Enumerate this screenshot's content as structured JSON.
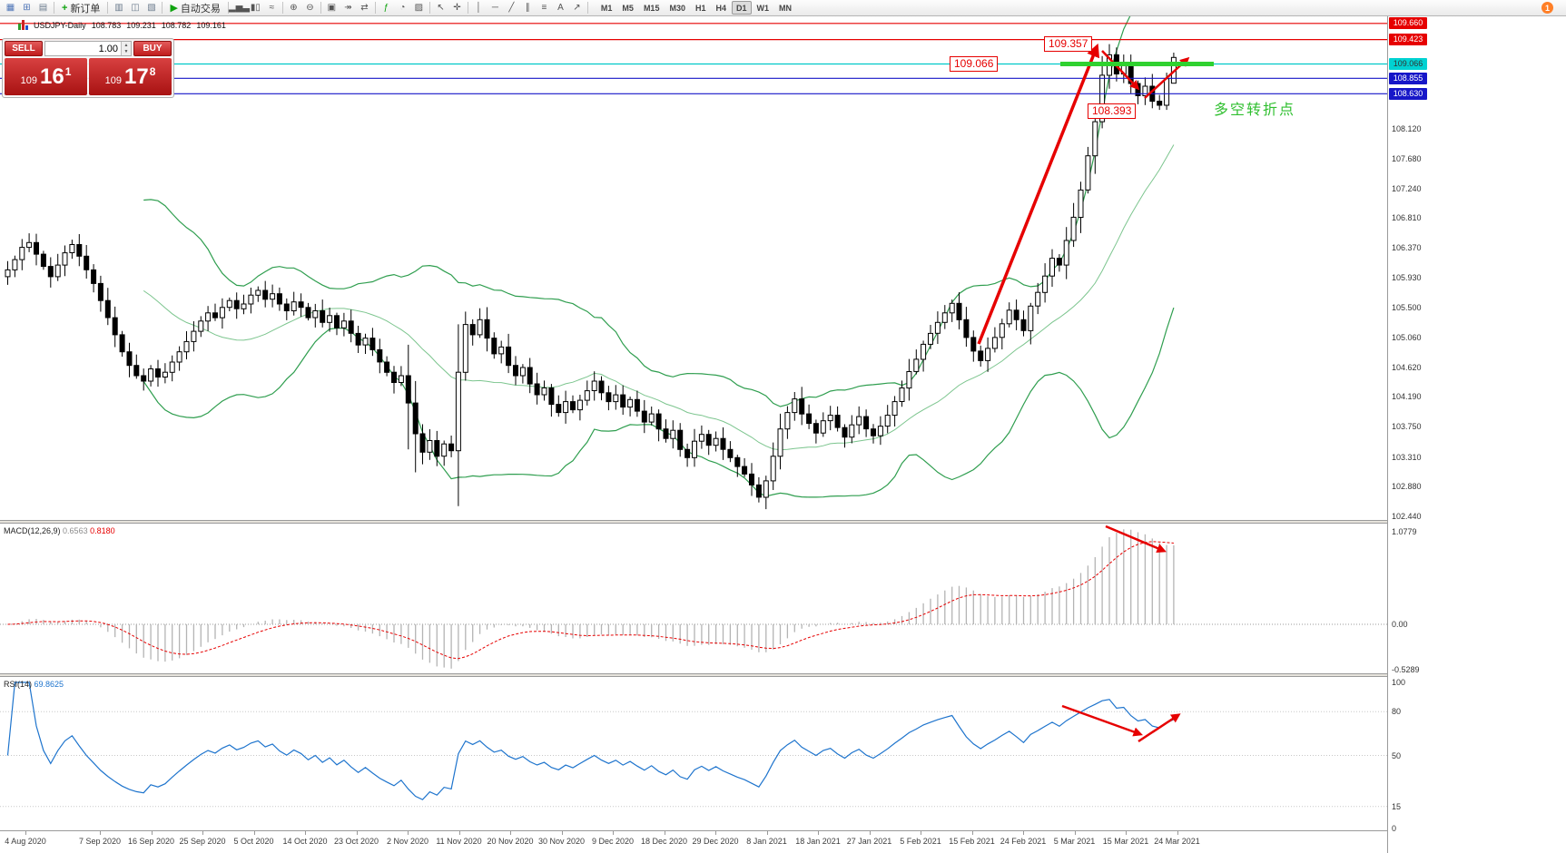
{
  "toolbar": {
    "items": [
      {
        "name": "chart-window-icon",
        "glyph": "▦",
        "color": "#4f76b8"
      },
      {
        "name": "new-chart-icon",
        "glyph": "⊞",
        "color": "#4f76b8"
      },
      {
        "name": "profiles-icon",
        "glyph": "▤",
        "color": "#6b7b8d"
      },
      {
        "sep": true
      },
      {
        "name": "new-order-button",
        "glyph": "+",
        "color": "#0fa30f",
        "label": "新订单"
      },
      {
        "sep": true
      },
      {
        "name": "market-watch-icon",
        "glyph": "▥",
        "color": "#6b7b8d"
      },
      {
        "name": "data-window-icon",
        "glyph": "◫",
        "color": "#6b7b8d"
      },
      {
        "name": "navigator-icon",
        "glyph": "▧",
        "color": "#6b7b8d"
      },
      {
        "sep": true
      },
      {
        "name": "autotrading-button",
        "glyph": "▶",
        "color": "#0fa30f",
        "label": "自动交易"
      },
      {
        "sep": true
      },
      {
        "name": "bar-chart-icon",
        "glyph": "▂▅▃",
        "color": "#555555"
      },
      {
        "name": "candle-chart-icon",
        "glyph": "▮▯",
        "color": "#555555"
      },
      {
        "name": "line-chart-icon",
        "glyph": "≈",
        "color": "#555555"
      },
      {
        "sep": true
      },
      {
        "name": "zoom-in-icon",
        "glyph": "⊕",
        "color": "#555555"
      },
      {
        "name": "zoom-out-icon",
        "glyph": "⊖",
        "color": "#555555"
      },
      {
        "sep": true
      },
      {
        "name": "tile-windows-icon",
        "glyph": "▣",
        "color": "#555555"
      },
      {
        "name": "auto-scroll-icon",
        "glyph": "↠",
        "color": "#555555"
      },
      {
        "name": "chart-shift-icon",
        "glyph": "⇄",
        "color": "#555555"
      },
      {
        "sep": true
      },
      {
        "name": "indicators-icon",
        "glyph": "ƒ",
        "color": "#0fa30f"
      },
      {
        "name": "periods-icon",
        "glyph": "◔",
        "color": "#555555"
      },
      {
        "name": "templates-icon",
        "glyph": "▨",
        "color": "#555555"
      },
      {
        "sep": true
      },
      {
        "name": "cursor-icon",
        "glyph": "↖",
        "color": "#555555"
      },
      {
        "name": "crosshair-icon",
        "glyph": "✛",
        "color": "#555555"
      },
      {
        "sep": true
      },
      {
        "name": "vline-icon",
        "glyph": "│",
        "color": "#555555"
      },
      {
        "name": "hline-icon",
        "glyph": "─",
        "color": "#555555"
      },
      {
        "name": "trendline-icon",
        "glyph": "╱",
        "color": "#555555"
      },
      {
        "name": "channel-icon",
        "glyph": "∥",
        "color": "#555555"
      },
      {
        "name": "fibonacci-icon",
        "glyph": "≡",
        "color": "#555555"
      },
      {
        "name": "text-icon",
        "glyph": "A",
        "color": "#555555"
      },
      {
        "name": "arrows-icon",
        "glyph": "↗",
        "color": "#555555"
      },
      {
        "sep": true
      }
    ],
    "timeframes": [
      "M1",
      "M5",
      "M15",
      "M30",
      "H1",
      "H4",
      "D1",
      "W1",
      "MN"
    ],
    "active_timeframe": "D1",
    "notification_badge": "1"
  },
  "chart_header": {
    "symbol_period": "USDJPY-Daily",
    "open": "108.783",
    "high": "109.231",
    "low": "108.782",
    "close": "109.161"
  },
  "trade_panel": {
    "sell_label": "SELL",
    "buy_label": "BUY",
    "volume": "1.00",
    "sell_price_prefix": "109",
    "sell_price_big": "16",
    "sell_price_sup": "1",
    "buy_price_prefix": "109",
    "buy_price_big": "17",
    "buy_price_sup": "8"
  },
  "annotations": {
    "peak_label": "109.357",
    "level_label": "109.066",
    "low_label": "108.393",
    "turning_point_text": "多空转折点",
    "colors": {
      "annotation_red": "#e60000",
      "trendline_green": "#2fd12f",
      "level_cyan": "#00c8c8",
      "level_blue": "#1616c8"
    }
  },
  "macd_panel": {
    "title": "MACD(12,26,9)",
    "value_main": "0.6563",
    "value_signal": "0.8180",
    "scale": [
      "1.0779",
      "0.00",
      "-0.5289"
    ]
  },
  "rsi_panel": {
    "title": "RSI(14)",
    "value": "69.8625",
    "scale": [
      100,
      80,
      50,
      15,
      0
    ],
    "levels": [
      80,
      50,
      15
    ]
  },
  "price_scale": {
    "boxed": [
      {
        "value": "109.660",
        "type": "red"
      },
      {
        "value": "109.423",
        "type": "red"
      },
      {
        "value": "109.066",
        "type": "cyan"
      },
      {
        "value": "108.855",
        "type": "blue"
      },
      {
        "value": "108.630",
        "type": "blue"
      }
    ],
    "plain": [
      "108.120",
      "107.680",
      "107.240",
      "106.810",
      "106.370",
      "105.930",
      "105.500",
      "105.060",
      "104.620",
      "104.190",
      "103.750",
      "103.310",
      "102.880",
      "102.440"
    ]
  },
  "chart_data": {
    "type": "candlestick",
    "symbol": "USDJPY",
    "period": "Daily",
    "ylim": [
      102.2,
      109.79
    ],
    "grid_step": 0.44,
    "closes": [
      106.05,
      106.2,
      106.38,
      106.45,
      106.28,
      106.1,
      105.95,
      106.12,
      106.3,
      106.42,
      106.25,
      106.05,
      105.85,
      105.6,
      105.35,
      105.1,
      104.85,
      104.65,
      104.5,
      104.42,
      104.6,
      104.48,
      104.55,
      104.7,
      104.85,
      105.0,
      105.15,
      105.3,
      105.42,
      105.35,
      105.5,
      105.6,
      105.48,
      105.55,
      105.68,
      105.75,
      105.62,
      105.7,
      105.55,
      105.45,
      105.58,
      105.5,
      105.35,
      105.45,
      105.28,
      105.38,
      105.2,
      105.3,
      105.12,
      104.95,
      105.05,
      104.88,
      104.7,
      104.55,
      104.4,
      104.5,
      104.1,
      103.65,
      103.38,
      103.55,
      103.32,
      103.5,
      103.4,
      104.55,
      105.25,
      105.1,
      105.32,
      105.05,
      104.82,
      104.92,
      104.65,
      104.5,
      104.62,
      104.38,
      104.22,
      104.32,
      104.08,
      103.96,
      104.12,
      104.0,
      104.14,
      104.28,
      104.42,
      104.25,
      104.12,
      104.22,
      104.04,
      104.15,
      103.98,
      103.82,
      103.94,
      103.72,
      103.58,
      103.7,
      103.42,
      103.3,
      103.54,
      103.64,
      103.48,
      103.58,
      103.42,
      103.3,
      103.17,
      103.06,
      102.9,
      102.72,
      102.96,
      103.32,
      103.72,
      103.96,
      104.16,
      103.94,
      103.8,
      103.66,
      103.84,
      103.92,
      103.74,
      103.6,
      103.78,
      103.9,
      103.72,
      103.62,
      103.76,
      103.92,
      104.12,
      104.32,
      104.56,
      104.74,
      104.96,
      105.12,
      105.28,
      105.42,
      105.56,
      105.32,
      105.06,
      104.86,
      104.72,
      104.9,
      105.06,
      105.26,
      105.46,
      105.32,
      105.16,
      105.52,
      105.72,
      105.96,
      106.22,
      106.12,
      106.48,
      106.82,
      107.22,
      107.72,
      108.22,
      108.9,
      109.2,
      108.92,
      109.05,
      108.78,
      108.6,
      108.74,
      108.52,
      108.46,
      108.85,
      109.16
    ],
    "last_candle": {
      "open": 108.783,
      "high": 109.231,
      "low": 108.782,
      "close": 109.161
    },
    "peak_high": 109.357,
    "pullback_low": 108.393,
    "min_low": 102.59,
    "long_wick_indices": [
      56,
      57,
      63
    ],
    "bollinger": {
      "period": 20,
      "deviation": 2,
      "color": "#2f9e4f"
    },
    "macd": {
      "fast": 12,
      "slow": 26,
      "signal": 9,
      "current_main": 0.6563,
      "current_signal": 0.818
    },
    "rsi": {
      "period": 14,
      "current": 69.8625
    },
    "key_levels": [
      109.66,
      109.423,
      109.066,
      108.855,
      108.63
    ],
    "date_labels": [
      "4 Aug 2020",
      "7 Sep 2020",
      "16 Sep 2020",
      "25 Sep 2020",
      "5 Oct 2020",
      "14 Oct 2020",
      "23 Oct 2020",
      "2 Nov 2020",
      "11 Nov 2020",
      "20 Nov 2020",
      "30 Nov 2020",
      "9 Dec 2020",
      "18 Dec 2020",
      "29 Dec 2020",
      "8 Jan 2021",
      "18 Jan 2021",
      "27 Jan 2021",
      "5 Feb 2021",
      "15 Feb 2021",
      "24 Feb 2021",
      "5 Mar 2021",
      "15 Mar 2021",
      "24 Mar 2021"
    ]
  }
}
